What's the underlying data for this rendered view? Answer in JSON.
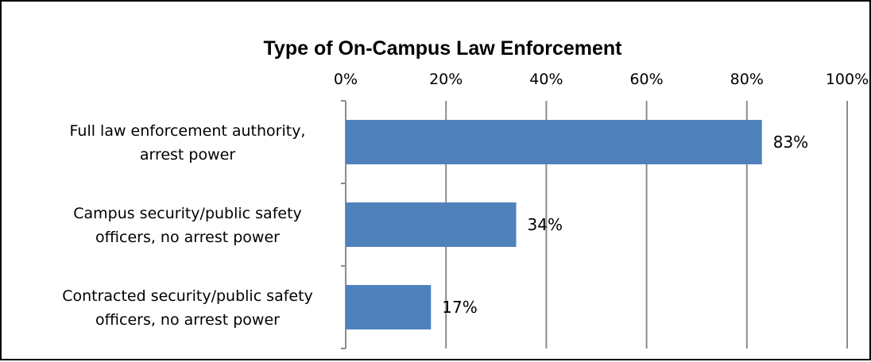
{
  "chart_data": {
    "type": "bar",
    "orientation": "horizontal",
    "title": "Type of On-Campus Law Enforcement",
    "xlabel": "",
    "ylabel": "",
    "xlim": [
      0,
      100
    ],
    "x_ticks": [
      "0%",
      "20%",
      "40%",
      "60%",
      "80%",
      "100%"
    ],
    "x_axis_position": "top",
    "grid": true,
    "legend": "none",
    "bar_color": "#4F81BD",
    "categories": [
      [
        "Full law enforcement authority,",
        "arrest power"
      ],
      [
        "Campus security/public safety",
        "officers, no arrest power"
      ],
      [
        "Contracted security/public safety",
        "officers, no arrest power"
      ]
    ],
    "values": [
      83,
      34,
      17
    ],
    "data_labels": [
      "83%",
      "34%",
      "17%"
    ]
  }
}
